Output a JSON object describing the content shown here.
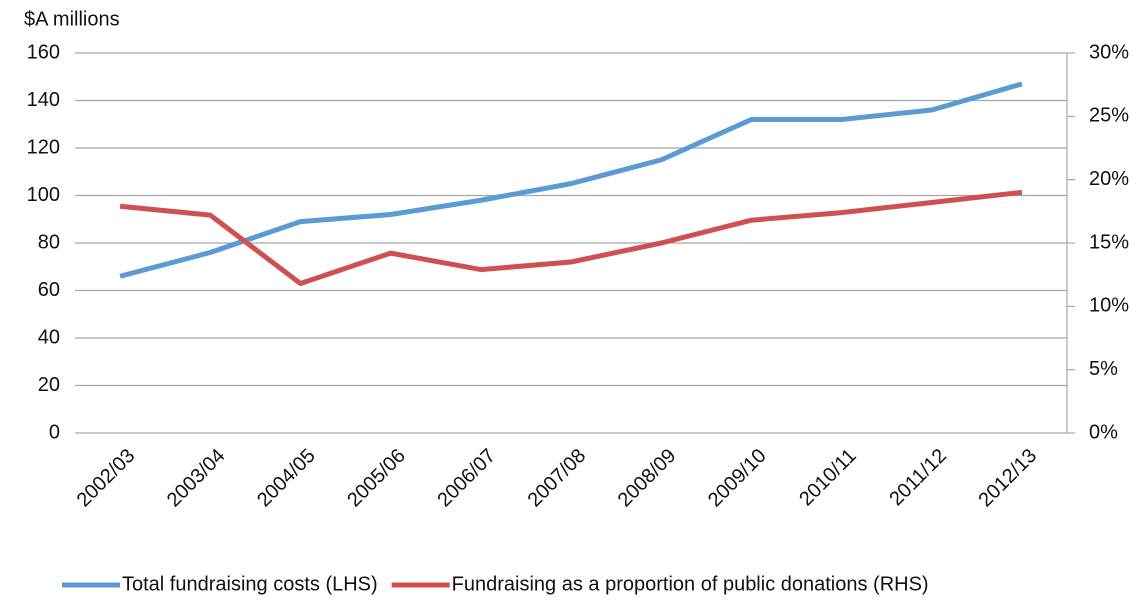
{
  "chart_data": {
    "type": "line",
    "y_label": "$A millions",
    "categories": [
      "2002/03",
      "2003/04",
      "2004/05",
      "2005/06",
      "2006/07",
      "2007/08",
      "2008/09",
      "2009/10",
      "2010/11",
      "2011/12",
      "2012/13"
    ],
    "series": [
      {
        "name": "Total fundraising costs (LHS)",
        "color": "#5b9bd5",
        "values": [
          66,
          76,
          89,
          92,
          98,
          105,
          115,
          132,
          132,
          136,
          147
        ]
      },
      {
        "name": "Fundraising as a proportion of public donations (RHS)",
        "color": "#d0504f",
        "axis": "y2",
        "values": [
          17.9,
          17.2,
          11.8,
          14.2,
          12.9,
          13.5,
          15.0,
          16.8,
          17.4,
          18.2,
          19.0
        ]
      }
    ],
    "ylim": [
      0,
      160
    ],
    "yticks": [
      0,
      20,
      40,
      60,
      80,
      100,
      120,
      140,
      160
    ],
    "y2lim": [
      0,
      30
    ],
    "y2ticks": [
      {
        "value": 0,
        "label": "0%"
      },
      {
        "value": 5,
        "label": "5%"
      },
      {
        "value": 10,
        "label": "10%"
      },
      {
        "value": 15,
        "label": "15%"
      },
      {
        "value": 20,
        "label": "20%"
      },
      {
        "value": 25,
        "label": "25%"
      },
      {
        "value": 30,
        "label": "30%"
      }
    ],
    "grid": true,
    "legend": "bottom"
  }
}
